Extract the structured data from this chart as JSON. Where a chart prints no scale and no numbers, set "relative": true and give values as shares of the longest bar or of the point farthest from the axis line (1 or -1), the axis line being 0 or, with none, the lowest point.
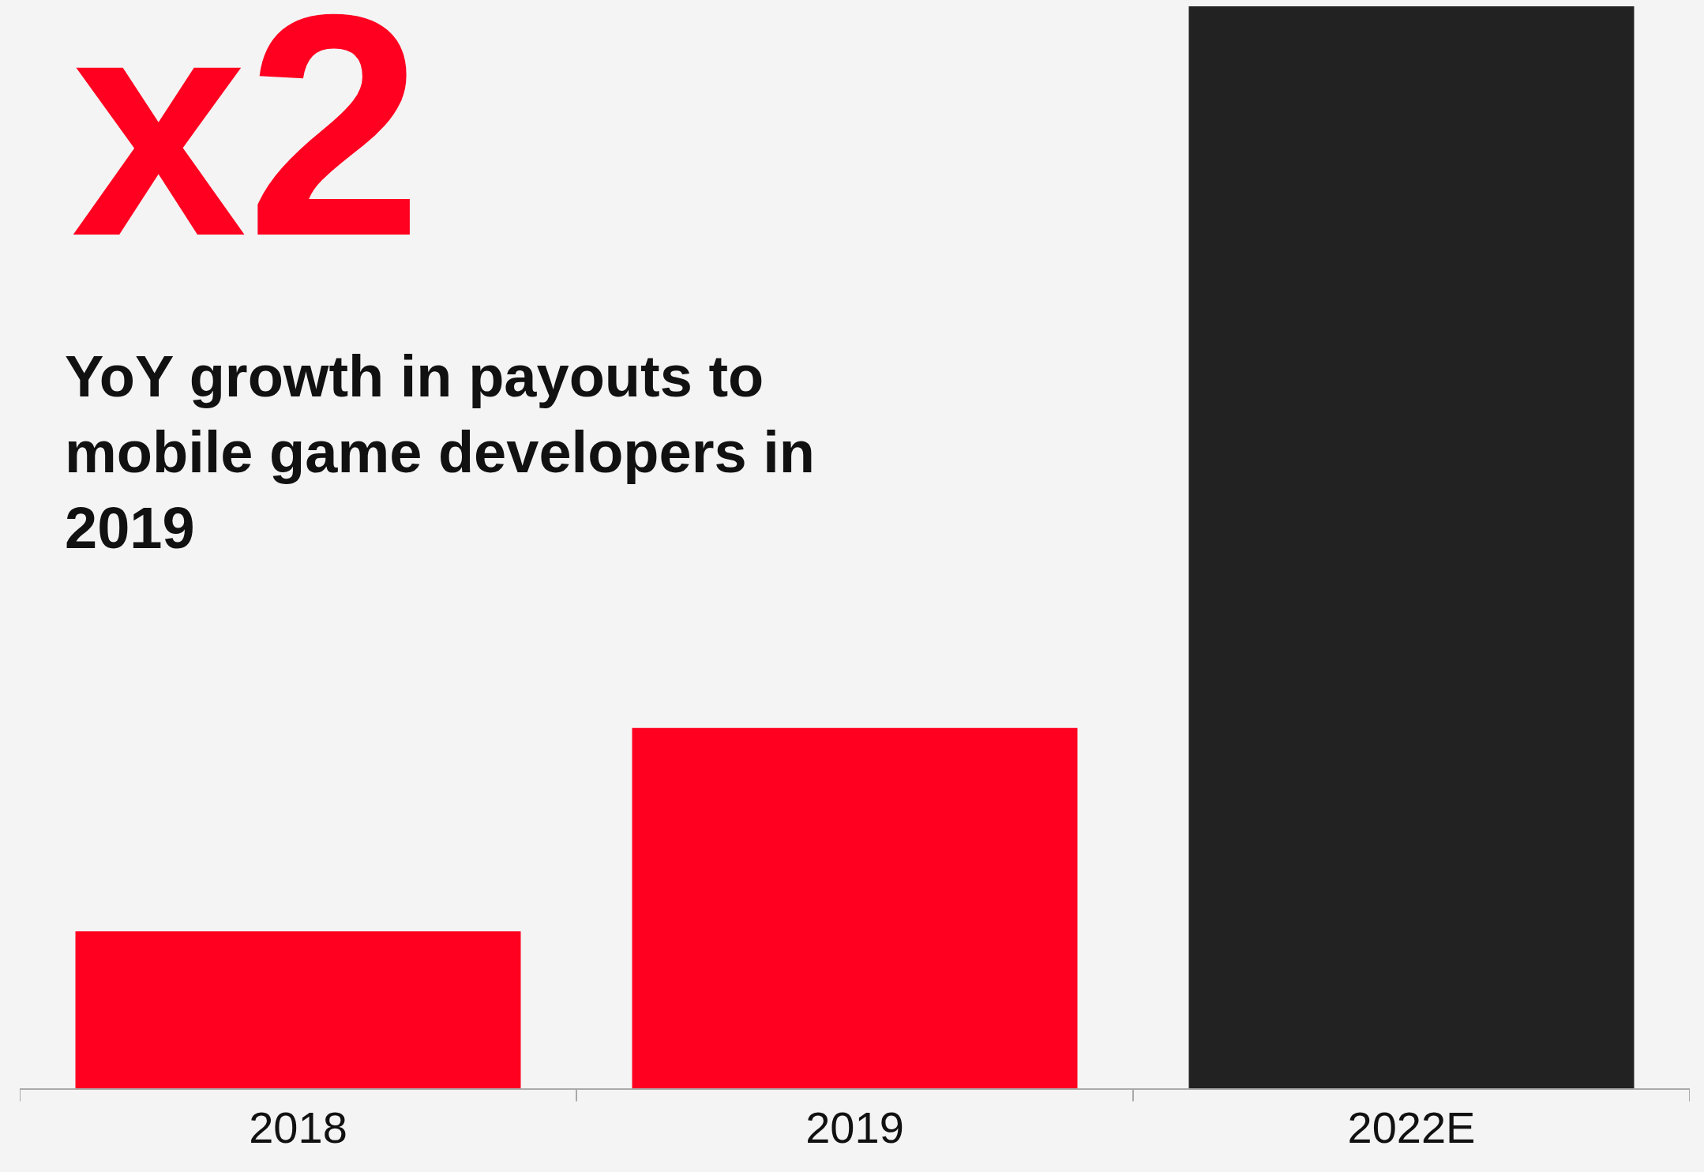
{
  "chart_data": {
    "type": "bar",
    "title": "YoY growth in payouts to mobile game developers in 2019",
    "annotations": [
      "x2"
    ],
    "categories": [
      "2018",
      "2019",
      "2022E"
    ],
    "values": [
      0.145,
      0.333,
      1
    ],
    "colors": [
      "#ff0020",
      "#ff0020",
      "#222222"
    ],
    "relative": true
  }
}
